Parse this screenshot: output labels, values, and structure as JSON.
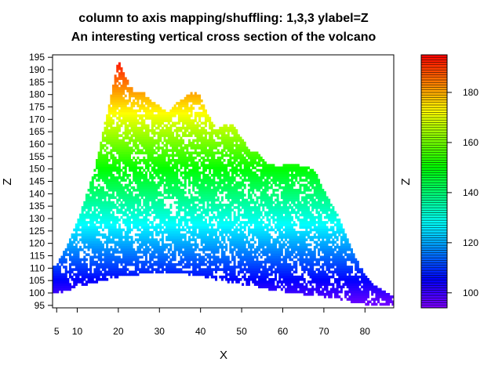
{
  "chart_data": {
    "type": "heatmap",
    "title": "column to axis mapping/shuffling: 1,3,3 ylabel=Z",
    "subtitle": "An interesting vertical cross section of the volcano",
    "xlabel": "X",
    "ylabel": "Z",
    "xlim": [
      4,
      87
    ],
    "ylim": [
      94,
      196
    ],
    "x_ticks": [
      5,
      10,
      20,
      30,
      40,
      50,
      60,
      70,
      80
    ],
    "y_ticks": [
      95,
      100,
      105,
      110,
      115,
      120,
      125,
      130,
      135,
      140,
      145,
      150,
      155,
      160,
      165,
      170,
      175,
      180,
      185,
      190,
      195
    ],
    "colorbar": {
      "label": "Z",
      "range": [
        94,
        195
      ],
      "ticks": [
        100,
        120,
        140,
        160,
        180
      ],
      "palette": "rainbow (violet-blue-cyan-green-yellow-orange-red)"
    },
    "ridge_profile": {
      "x": [
        5,
        7,
        10,
        12,
        14,
        15,
        17,
        19,
        20,
        21,
        22,
        24,
        26,
        28,
        30,
        32,
        34,
        36,
        38,
        40,
        42,
        44,
        46,
        48,
        50,
        52,
        54,
        56,
        58,
        60,
        62,
        64,
        66,
        68,
        70,
        72,
        74,
        76,
        78,
        80,
        82,
        84,
        86
      ],
      "z": [
        111,
        117,
        128,
        138,
        148,
        155,
        170,
        186,
        194,
        190,
        186,
        180,
        181,
        177,
        175,
        172,
        176,
        178,
        181,
        179,
        171,
        165,
        168,
        167,
        162,
        157,
        156,
        152,
        151,
        151,
        152,
        151,
        151,
        148,
        141,
        135,
        129,
        120,
        113,
        107,
        103,
        101,
        99
      ]
    },
    "floor_profile": {
      "x": [
        5,
        10,
        20,
        30,
        40,
        50,
        60,
        70,
        80,
        86
      ],
      "z": [
        100,
        103,
        107,
        109,
        107,
        104,
        101,
        99,
        96,
        95
      ]
    }
  }
}
